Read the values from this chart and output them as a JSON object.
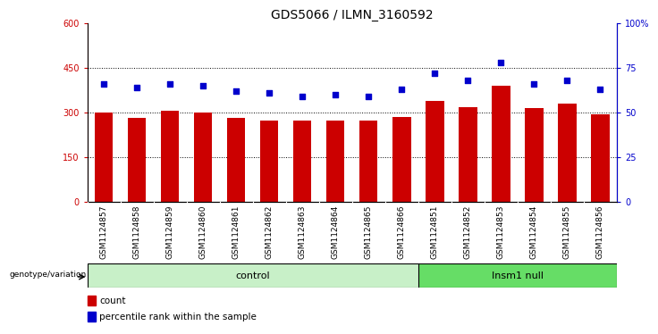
{
  "title": "GDS5066 / ILMN_3160592",
  "samples": [
    "GSM1124857",
    "GSM1124858",
    "GSM1124859",
    "GSM1124860",
    "GSM1124861",
    "GSM1124862",
    "GSM1124863",
    "GSM1124864",
    "GSM1124865",
    "GSM1124866",
    "GSM1124851",
    "GSM1124852",
    "GSM1124853",
    "GSM1124854",
    "GSM1124855",
    "GSM1124856"
  ],
  "counts": [
    300,
    283,
    307,
    300,
    283,
    275,
    275,
    275,
    275,
    285,
    340,
    320,
    390,
    315,
    330,
    295
  ],
  "percentiles": [
    66,
    64,
    66,
    65,
    62,
    61,
    59,
    60,
    59,
    63,
    72,
    68,
    78,
    66,
    68,
    63
  ],
  "n_control": 10,
  "n_insm1": 6,
  "control_color": "#c8f0c8",
  "insm1_color": "#66dd66",
  "bar_color": "#cc0000",
  "dot_color": "#0000cc",
  "tick_bg_color": "#c8c8c8",
  "left_ylim": [
    0,
    600
  ],
  "right_ylim": [
    0,
    100
  ],
  "left_yticks": [
    0,
    150,
    300,
    450,
    600
  ],
  "right_yticks": [
    0,
    25,
    50,
    75,
    100
  ],
  "right_yticklabels": [
    "0",
    "25",
    "50",
    "75",
    "100%"
  ],
  "grid_values": [
    150,
    300,
    450
  ],
  "genotype_label": "genotype/variation",
  "control_label": "control",
  "insm1_label": "Insm1 null",
  "legend_count": "count",
  "legend_pct": "percentile rank within the sample",
  "title_fontsize": 10,
  "tick_fontsize": 7,
  "label_fontsize": 8
}
